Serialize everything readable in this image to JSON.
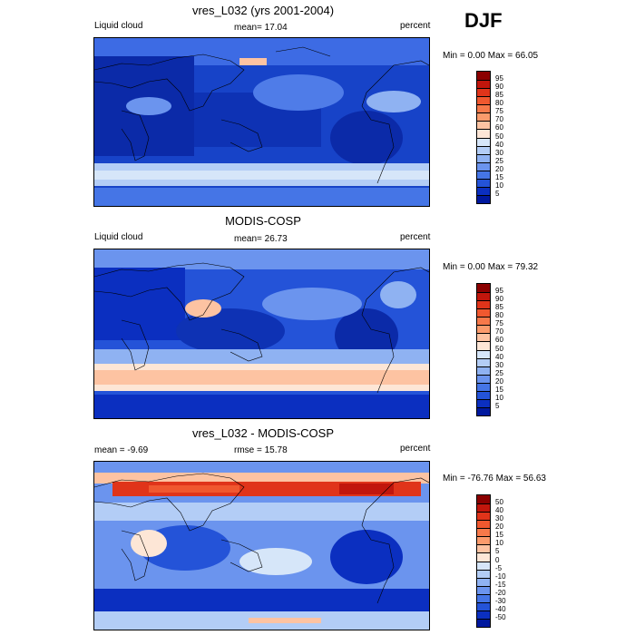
{
  "season": "DJF",
  "panels": [
    {
      "title": "vres_L032 (yrs 2001-2004)",
      "left_label": "Liquid cloud",
      "center_label": "mean=  17.04",
      "right_label": "percent",
      "minmax": "Min =   0.00 Max =  66.05",
      "colorbar_labels": [
        "95",
        "90",
        "85",
        "80",
        "75",
        "70",
        "60",
        "50",
        "40",
        "30",
        "25",
        "20",
        "15",
        "10",
        "5"
      ],
      "colorbar_colors": [
        "#8b0000",
        "#c1160c",
        "#e0341a",
        "#f0582f",
        "#f7794a",
        "#fb9b6c",
        "#fdc3a2",
        "#fde6d6",
        "#d6e6f9",
        "#b3cdf6",
        "#8fb2f2",
        "#6b94ee",
        "#4575e6",
        "#2453d8",
        "#0b2fc0",
        "#00189e"
      ]
    },
    {
      "title": "MODIS-COSP",
      "left_label": "Liquid cloud",
      "center_label": "mean=  26.73",
      "right_label": "percent",
      "minmax": "Min =   0.00 Max =  79.32",
      "colorbar_labels": [
        "95",
        "90",
        "85",
        "80",
        "75",
        "70",
        "60",
        "50",
        "40",
        "30",
        "25",
        "20",
        "15",
        "10",
        "5"
      ],
      "colorbar_colors": [
        "#8b0000",
        "#c1160c",
        "#e0341a",
        "#f0582f",
        "#f7794a",
        "#fb9b6c",
        "#fdc3a2",
        "#fde6d6",
        "#d6e6f9",
        "#b3cdf6",
        "#8fb2f2",
        "#6b94ee",
        "#4575e6",
        "#2453d8",
        "#0b2fc0",
        "#00189e"
      ]
    },
    {
      "title": "vres_L032 - MODIS-COSP",
      "left_label": "mean =  -9.69",
      "center_label": "rmse =  15.78",
      "right_label": "percent",
      "minmax": "Min = -76.76 Max =  56.63",
      "colorbar_labels": [
        "50",
        "40",
        "30",
        "20",
        "15",
        "10",
        "5",
        "0",
        "-5",
        "-10",
        "-15",
        "-20",
        "-30",
        "-40",
        "-50"
      ],
      "colorbar_colors": [
        "#8b0000",
        "#c1160c",
        "#e0341a",
        "#f0582f",
        "#f7794a",
        "#fb9b6c",
        "#fdc3a2",
        "#fde6d6",
        "#d6e6f9",
        "#b3cdf6",
        "#8fb2f2",
        "#6b94ee",
        "#4575e6",
        "#2453d8",
        "#0b2fc0",
        "#00189e"
      ]
    }
  ]
}
